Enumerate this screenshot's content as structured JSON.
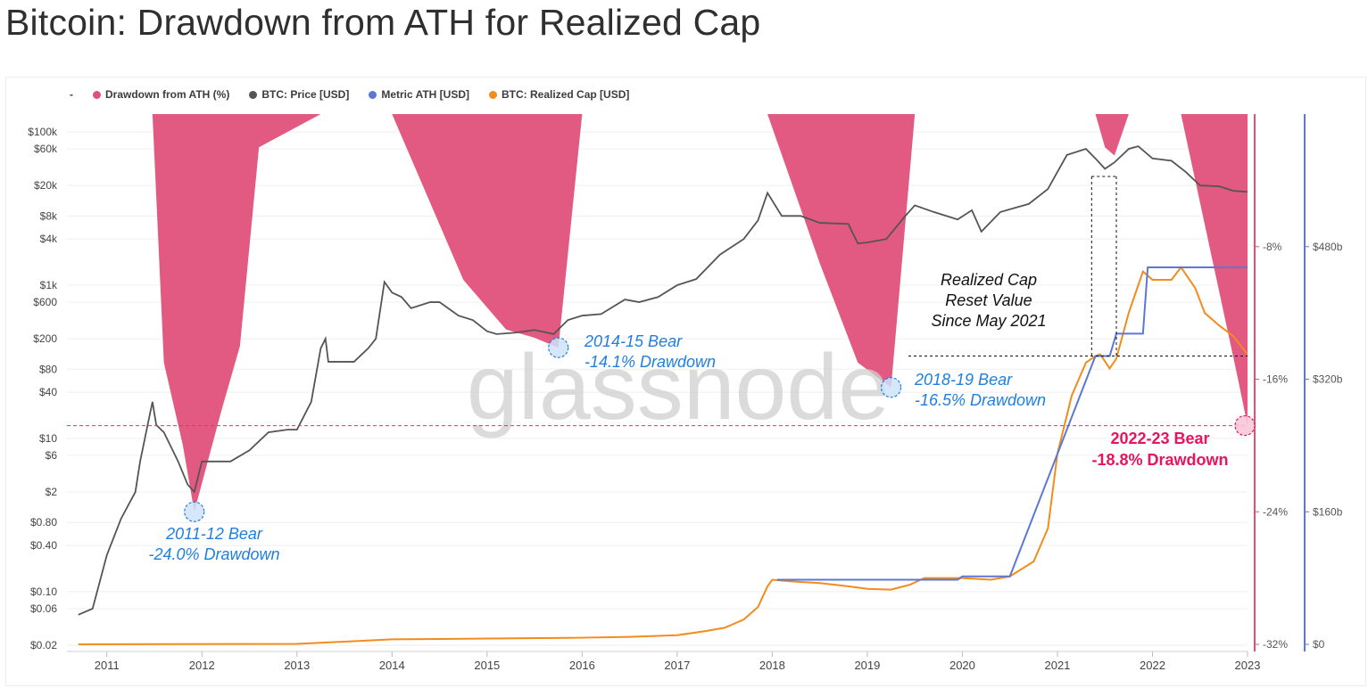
{
  "page": {
    "title": "Bitcoin: Drawdown from ATH for Realized Cap"
  },
  "legend": {
    "dash": "-",
    "items": [
      {
        "label": "Drawdown from ATH (%)",
        "color": "#e0507a"
      },
      {
        "label": "BTC: Price [USD]",
        "color": "#555555"
      },
      {
        "label": "Metric ATH [USD]",
        "color": "#5c78d6"
      },
      {
        "label": "BTC: Realized Cap [USD]",
        "color": "#f28c1c"
      }
    ]
  },
  "watermark": "glassnode",
  "chart_data": {
    "type": "line",
    "title": "Bitcoin: Drawdown from ATH for Realized Cap",
    "x_axis": {
      "ticks": [
        "2011",
        "2012",
        "2013",
        "2014",
        "2015",
        "2016",
        "2017",
        "2018",
        "2019",
        "2020",
        "2021",
        "2022",
        "2023"
      ]
    },
    "price_axis": {
      "scale": "log",
      "ticks": [
        "$100k",
        "$60k",
        "$20k",
        "$8k",
        "$4k",
        "$1k",
        "$600",
        "$200",
        "$80",
        "$40",
        "$10",
        "$6",
        "$2",
        "$0.80",
        "$0.40",
        "$0.10",
        "$0.06",
        "$0.02"
      ]
    },
    "drawdown_axis": {
      "ticks": [
        "-8%",
        "-16%",
        "-24%",
        "-32%"
      ],
      "range": [
        -32,
        0
      ]
    },
    "realized_cap_axis": {
      "ticks": [
        "$480b",
        "$320b",
        "$160b",
        "$0"
      ],
      "range_billion": [
        0,
        640
      ]
    },
    "series": [
      {
        "name": "BTC: Price [USD]",
        "color": "#555555",
        "points": [
          [
            2010.7,
            0.05
          ],
          [
            2010.85,
            0.06
          ],
          [
            2011.0,
            0.3
          ],
          [
            2011.15,
            0.9
          ],
          [
            2011.3,
            2
          ],
          [
            2011.35,
            5
          ],
          [
            2011.45,
            20
          ],
          [
            2011.48,
            30
          ],
          [
            2011.52,
            15
          ],
          [
            2011.6,
            12
          ],
          [
            2011.75,
            5
          ],
          [
            2011.85,
            2.5
          ],
          [
            2011.92,
            2
          ],
          [
            2012.0,
            5
          ],
          [
            2012.1,
            5
          ],
          [
            2012.3,
            5
          ],
          [
            2012.5,
            7
          ],
          [
            2012.7,
            12
          ],
          [
            2012.9,
            13
          ],
          [
            2013.0,
            13
          ],
          [
            2013.15,
            30
          ],
          [
            2013.25,
            150
          ],
          [
            2013.3,
            200
          ],
          [
            2013.33,
            100
          ],
          [
            2013.45,
            100
          ],
          [
            2013.6,
            100
          ],
          [
            2013.75,
            150
          ],
          [
            2013.83,
            200
          ],
          [
            2013.92,
            1100
          ],
          [
            2014.0,
            800
          ],
          [
            2014.1,
            700
          ],
          [
            2014.2,
            500
          ],
          [
            2014.4,
            600
          ],
          [
            2014.5,
            600
          ],
          [
            2014.7,
            400
          ],
          [
            2014.85,
            350
          ],
          [
            2015.0,
            250
          ],
          [
            2015.1,
            230
          ],
          [
            2015.3,
            240
          ],
          [
            2015.5,
            260
          ],
          [
            2015.7,
            230
          ],
          [
            2015.85,
            350
          ],
          [
            2016.0,
            400
          ],
          [
            2016.2,
            420
          ],
          [
            2016.45,
            650
          ],
          [
            2016.6,
            600
          ],
          [
            2016.8,
            700
          ],
          [
            2017.0,
            1000
          ],
          [
            2017.2,
            1200
          ],
          [
            2017.45,
            2500
          ],
          [
            2017.7,
            4000
          ],
          [
            2017.85,
            7000
          ],
          [
            2017.95,
            16000
          ],
          [
            2018.1,
            8000
          ],
          [
            2018.3,
            8000
          ],
          [
            2018.5,
            6500
          ],
          [
            2018.8,
            6300
          ],
          [
            2018.9,
            3500
          ],
          [
            2019.0,
            3600
          ],
          [
            2019.2,
            4000
          ],
          [
            2019.4,
            8000
          ],
          [
            2019.5,
            11000
          ],
          [
            2019.7,
            9000
          ],
          [
            2019.95,
            7200
          ],
          [
            2020.1,
            9500
          ],
          [
            2020.2,
            5000
          ],
          [
            2020.4,
            9000
          ],
          [
            2020.7,
            11500
          ],
          [
            2020.9,
            18000
          ],
          [
            2021.0,
            30000
          ],
          [
            2021.1,
            50000
          ],
          [
            2021.3,
            60000
          ],
          [
            2021.4,
            45000
          ],
          [
            2021.5,
            33000
          ],
          [
            2021.6,
            40000
          ],
          [
            2021.75,
            60000
          ],
          [
            2021.85,
            65000
          ],
          [
            2022.0,
            45000
          ],
          [
            2022.2,
            42000
          ],
          [
            2022.35,
            30000
          ],
          [
            2022.5,
            20000
          ],
          [
            2022.7,
            19500
          ],
          [
            2022.85,
            17000
          ],
          [
            2023.0,
            16500
          ]
        ]
      },
      {
        "name": "Metric ATH [USD]",
        "color": "#5c78d6",
        "points": [
          [
            2018.05,
            78
          ],
          [
            2019.95,
            78
          ],
          [
            2020.0,
            82
          ],
          [
            2020.5,
            82
          ],
          [
            2021.4,
            348
          ],
          [
            2021.55,
            348
          ],
          [
            2021.62,
            375
          ],
          [
            2021.9,
            375
          ],
          [
            2021.95,
            455
          ],
          [
            2023.0,
            455
          ]
        ]
      },
      {
        "name": "BTC: Realized Cap [USD]",
        "color": "#f28c1c",
        "points": [
          [
            2010.7,
            0
          ],
          [
            2013.0,
            0.5
          ],
          [
            2014.0,
            6
          ],
          [
            2015.0,
            7
          ],
          [
            2016.0,
            8
          ],
          [
            2016.5,
            9
          ],
          [
            2017.0,
            11
          ],
          [
            2017.3,
            16
          ],
          [
            2017.5,
            20
          ],
          [
            2017.7,
            30
          ],
          [
            2017.85,
            45
          ],
          [
            2017.95,
            70
          ],
          [
            2018.0,
            78
          ],
          [
            2018.2,
            76
          ],
          [
            2018.5,
            74
          ],
          [
            2018.8,
            70
          ],
          [
            2019.0,
            67
          ],
          [
            2019.25,
            66
          ],
          [
            2019.45,
            72
          ],
          [
            2019.6,
            80
          ],
          [
            2020.0,
            80
          ],
          [
            2020.3,
            78
          ],
          [
            2020.5,
            82
          ],
          [
            2020.75,
            100
          ],
          [
            2020.9,
            140
          ],
          [
            2021.0,
            230
          ],
          [
            2021.15,
            300
          ],
          [
            2021.3,
            340
          ],
          [
            2021.4,
            348
          ],
          [
            2021.45,
            350
          ],
          [
            2021.55,
            333
          ],
          [
            2021.62,
            345
          ],
          [
            2021.75,
            400
          ],
          [
            2021.9,
            450
          ],
          [
            2022.0,
            440
          ],
          [
            2022.2,
            440
          ],
          [
            2022.3,
            455
          ],
          [
            2022.45,
            430
          ],
          [
            2022.55,
            400
          ],
          [
            2022.7,
            385
          ],
          [
            2022.85,
            372
          ],
          [
            2023.0,
            350
          ]
        ]
      },
      {
        "name": "Drawdown from ATH (%)",
        "color": "#e0507a",
        "points": [
          [
            2011.48,
            0
          ],
          [
            2011.6,
            -15
          ],
          [
            2011.8,
            -20
          ],
          [
            2011.92,
            -24.0
          ],
          [
            2012.2,
            -18
          ],
          [
            2012.4,
            -14
          ],
          [
            2012.6,
            -2
          ],
          [
            2013.25,
            0
          ],
          [
            2014.0,
            0
          ],
          [
            2014.75,
            -10
          ],
          [
            2015.2,
            -13
          ],
          [
            2015.5,
            -13.5
          ],
          [
            2015.75,
            -14.1
          ],
          [
            2016.0,
            0
          ],
          [
            2017.95,
            0
          ],
          [
            2018.5,
            -9
          ],
          [
            2018.9,
            -15
          ],
          [
            2019.25,
            -16.5
          ],
          [
            2019.5,
            0
          ],
          [
            2021.4,
            0
          ],
          [
            2021.5,
            -2
          ],
          [
            2021.6,
            -2.5
          ],
          [
            2021.75,
            0
          ],
          [
            2022.3,
            0
          ],
          [
            2022.6,
            -8
          ],
          [
            2022.9,
            -16
          ],
          [
            2023.0,
            -18.8
          ]
        ]
      }
    ],
    "annotations": [
      {
        "text_line1": "2011-12 Bear",
        "text_line2": "-24.0% Drawdown",
        "x": 2011.92,
        "drawdown": -24.0
      },
      {
        "text_line1": "2014-15 Bear",
        "text_line2": "-14.1% Drawdown",
        "x": 2015.75,
        "drawdown": -14.1
      },
      {
        "text_line1": "2018-19 Bear",
        "text_line2": "-16.5% Drawdown",
        "x": 2019.25,
        "drawdown": -16.5
      },
      {
        "text_line1": "2022-23 Bear",
        "text_line2": "-18.8% Drawdown",
        "x": 2023.0,
        "drawdown": -18.8
      }
    ],
    "reset_note": {
      "line1": "Realized Cap",
      "line2": "Reset Value",
      "line3": "Since May 2021"
    },
    "grid": true,
    "legend_position": "top-left"
  }
}
